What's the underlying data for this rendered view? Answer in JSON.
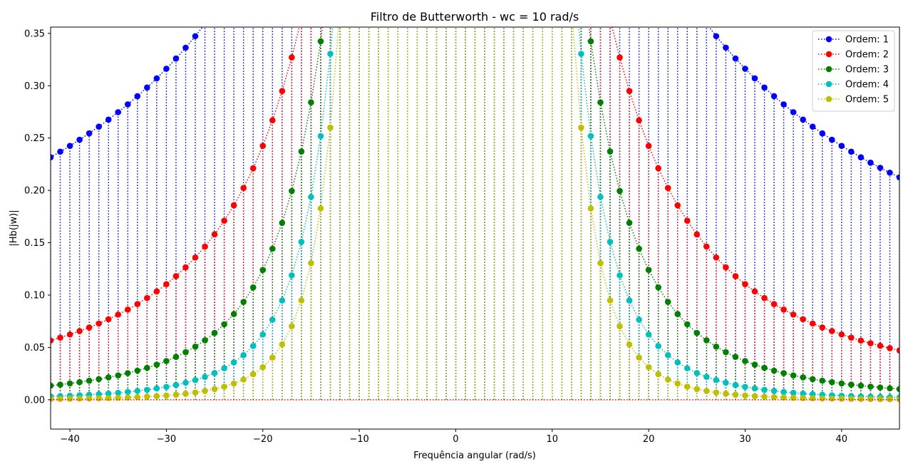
{
  "chart_data": {
    "type": "stem",
    "title": "Filtro de Butterworth - wc = 10 rad/s",
    "xlabel": "Frequência angular (rad/s)",
    "ylabel": "|Hb(jw)|",
    "xlim": [
      -42,
      46
    ],
    "ylim": [
      -0.028,
      0.356
    ],
    "xticks": [
      -40,
      -30,
      -20,
      -10,
      0,
      10,
      20,
      30,
      40
    ],
    "yticks": [
      0.0,
      0.05,
      0.1,
      0.15,
      0.2,
      0.25,
      0.3,
      0.35
    ],
    "xtick_labels": [
      "−40",
      "−30",
      "−20",
      "−10",
      "0",
      "10",
      "20",
      "30",
      "40"
    ],
    "ytick_labels": [
      "0.00",
      "0.05",
      "0.10",
      "0.15",
      "0.20",
      "0.25",
      "0.30",
      "0.35"
    ],
    "x_start": -42,
    "x_end": 46,
    "x_step": 1,
    "cutoff_wc": 10,
    "legend_position": "top-right",
    "grid": false,
    "series": [
      {
        "name": "Ordem: 1",
        "order": 1,
        "color": "#0000ff"
      },
      {
        "name": "Ordem: 2",
        "order": 2,
        "color": "#ff0000"
      },
      {
        "name": "Ordem: 3",
        "order": 3,
        "color": "#008000"
      },
      {
        "name": "Ordem: 4",
        "order": 4,
        "color": "#00bfbf"
      },
      {
        "name": "Ordem: 5",
        "order": 5,
        "color": "#bfbf00"
      }
    ],
    "baseline_color": "#ff0000"
  }
}
